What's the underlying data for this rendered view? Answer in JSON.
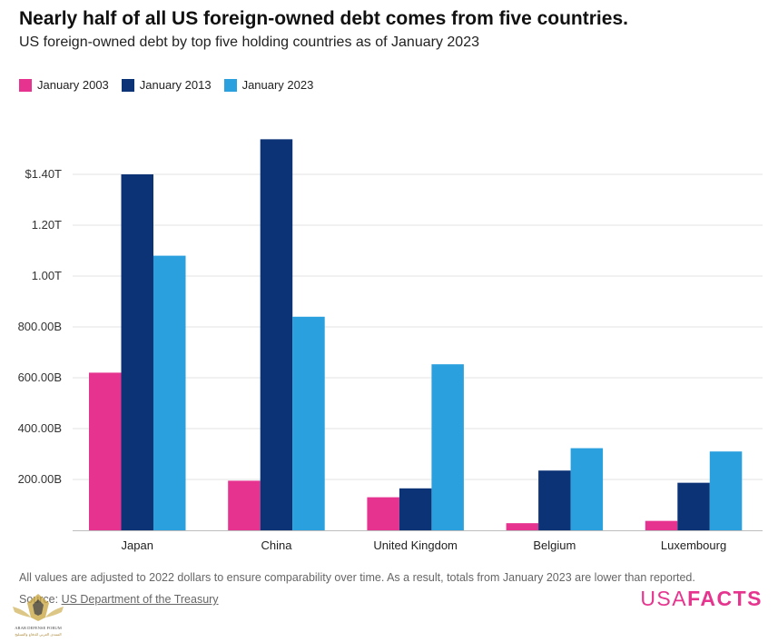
{
  "title": "Nearly half of all US foreign-owned debt comes from five countries.",
  "subtitle": "US foreign-owned debt by top five holding countries as of January 2023",
  "footnote": "All values are adjusted to 2022 dollars to ensure comparability over time. As a result, totals from January 2023 are lower than reported.",
  "source": {
    "prefix": "Source: ",
    "link_text": "US Department of the Treasury"
  },
  "brand": {
    "part1": "USA",
    "part2": "FACTS"
  },
  "watermark": {
    "line1": "ARAB DEFENSE FORUM",
    "line2": "المنتدى العربي للدفاع والتسليح"
  },
  "colors": {
    "2003": "#e5338f",
    "2013": "#0d3377",
    "2023": "#2aa0de",
    "grid": "#e3e3e3",
    "axis": "#bdbdbd"
  },
  "chart_data": {
    "type": "bar",
    "title": "Nearly half of all US foreign-owned debt comes from five countries.",
    "subtitle": "US foreign-owned debt by top five holding countries as of January 2023",
    "xlabel": "",
    "ylabel": "",
    "categories": [
      "Japan",
      "China",
      "United Kingdom",
      "Belgium",
      "Luxembourg"
    ],
    "series": [
      {
        "name": "January 2003",
        "color": "#e5338f",
        "values": [
          620,
          195,
          130,
          28,
          37
        ]
      },
      {
        "name": "January 2013",
        "color": "#0d3377",
        "values": [
          1400,
          1538,
          165,
          235,
          187
        ]
      },
      {
        "name": "January 2023",
        "color": "#2aa0de",
        "values": [
          1080,
          840,
          653,
          323,
          310
        ]
      }
    ],
    "units": "billions of dollars",
    "ylim": [
      0,
      1540
    ],
    "yticks": [
      200,
      400,
      600,
      800,
      1000,
      1200,
      1400
    ],
    "ytick_labels": [
      "200.00B",
      "400.00B",
      "600.00B",
      "800.00B",
      "1.00T",
      "1.20T",
      "$1.40T"
    ],
    "grid": true,
    "legend": "top-left"
  }
}
